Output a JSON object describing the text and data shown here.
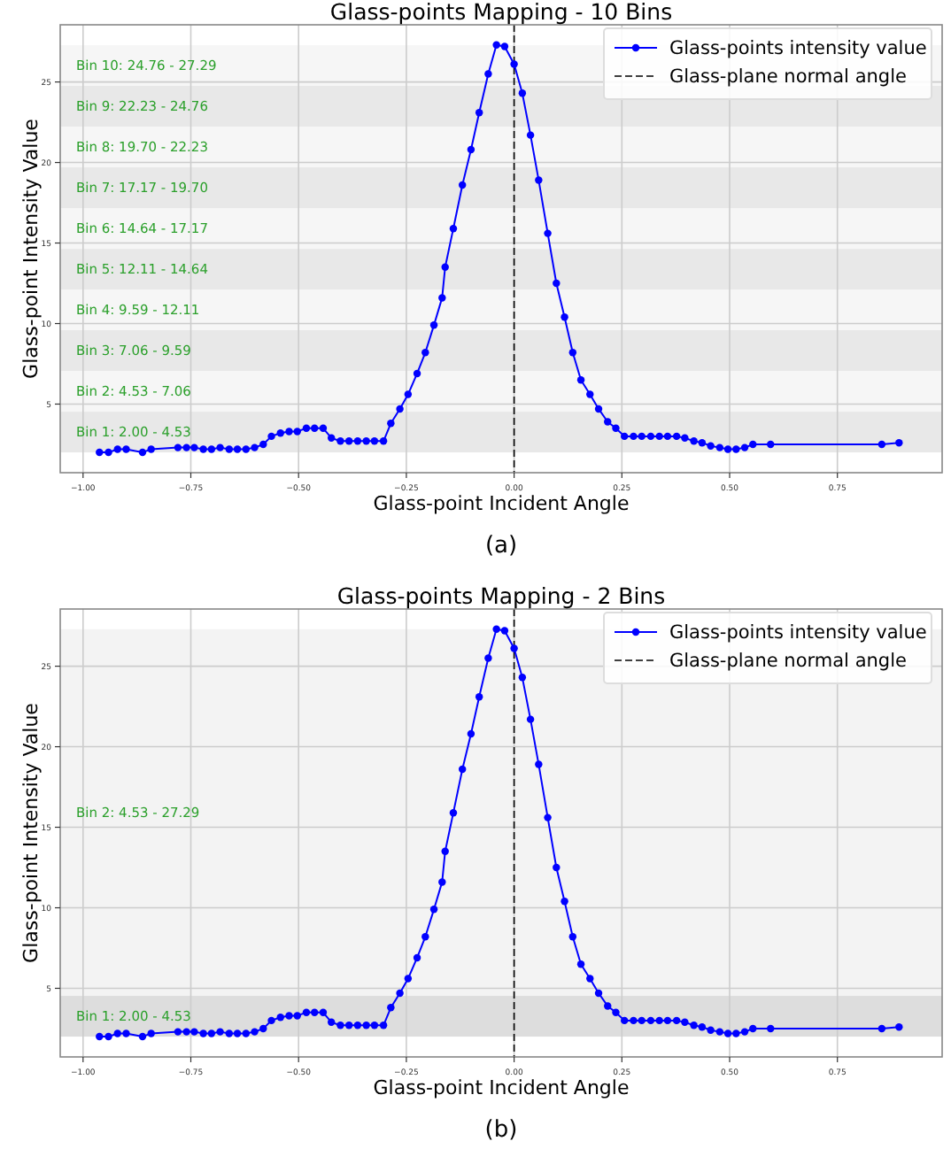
{
  "chart_data": [
    {
      "type": "line",
      "title": "Glass-points Mapping - 10 Bins",
      "xlabel": "Glass-point Incident Angle",
      "ylabel": "Glass-point Intensity Value",
      "annotations": [
        "(a)"
      ],
      "x": [
        -0.962,
        -0.941,
        -0.92,
        -0.9,
        -0.862,
        -0.842,
        -0.78,
        -0.76,
        -0.742,
        -0.721,
        -0.702,
        -0.682,
        -0.661,
        -0.642,
        -0.622,
        -0.602,
        -0.582,
        -0.563,
        -0.542,
        -0.522,
        -0.503,
        -0.482,
        -0.463,
        -0.443,
        -0.424,
        -0.403,
        -0.383,
        -0.363,
        -0.343,
        -0.324,
        -0.303,
        -0.286,
        -0.265,
        -0.246,
        -0.225,
        -0.206,
        -0.186,
        -0.167,
        -0.16,
        -0.141,
        -0.12,
        -0.1,
        -0.081,
        -0.06,
        -0.041,
        -0.022,
        0.0,
        0.019,
        0.038,
        0.057,
        0.078,
        0.098,
        0.117,
        0.136,
        0.155,
        0.176,
        0.196,
        0.217,
        0.236,
        0.256,
        0.277,
        0.296,
        0.317,
        0.337,
        0.356,
        0.377,
        0.396,
        0.417,
        0.436,
        0.456,
        0.477,
        0.496,
        0.515,
        0.535,
        0.554,
        0.595,
        0.853,
        0.893
      ],
      "series": [
        {
          "name": "Glass-points intensity value",
          "color": "#0000ff",
          "values": [
            2.0,
            2.0,
            2.2,
            2.2,
            2.0,
            2.2,
            2.3,
            2.3,
            2.3,
            2.2,
            2.2,
            2.3,
            2.2,
            2.2,
            2.2,
            2.3,
            2.5,
            3.0,
            3.2,
            3.3,
            3.3,
            3.5,
            3.5,
            3.5,
            2.9,
            2.7,
            2.7,
            2.7,
            2.7,
            2.7,
            2.7,
            3.8,
            4.7,
            5.6,
            6.9,
            8.2,
            9.9,
            11.6,
            13.5,
            15.9,
            18.6,
            20.8,
            23.1,
            25.5,
            27.3,
            27.2,
            26.1,
            24.3,
            21.7,
            18.9,
            15.6,
            12.5,
            10.4,
            8.2,
            6.5,
            5.6,
            4.7,
            3.9,
            3.5,
            3.0,
            3.0,
            3.0,
            3.0,
            3.0,
            3.0,
            3.0,
            2.9,
            2.7,
            2.6,
            2.4,
            2.3,
            2.2,
            2.2,
            2.3,
            2.5,
            2.5,
            2.5,
            2.6
          ]
        }
      ],
      "xlim": [
        -1.053,
        0.993
      ],
      "ylim": [
        0.74,
        28.55
      ],
      "xticks": [
        {
          "value": -1,
          "label": "−1.00"
        },
        {
          "value": -0.75,
          "label": "−0.75"
        },
        {
          "value": -0.5,
          "label": "−0.50"
        },
        {
          "value": -0.25,
          "label": "−0.25"
        },
        {
          "value": 0,
          "label": "0.00"
        },
        {
          "value": 0.25,
          "label": "0.25"
        },
        {
          "value": 0.5,
          "label": "0.50"
        },
        {
          "value": 0.75,
          "label": "0.75"
        }
      ],
      "yticks": [
        5,
        10,
        15,
        20,
        25
      ],
      "grid": true,
      "marker": "circle",
      "line_style": "solid",
      "legend": "top right",
      "ref_lines": [
        {
          "axis": "x",
          "value": 0,
          "label": "Glass-plane normal angle",
          "color": "#000000",
          "line_style": "dashed"
        }
      ],
      "bands": [
        {
          "axis": "y",
          "from": 2.0,
          "to": 4.53,
          "label": "Bin 1: 2.00 - 4.53",
          "color": "#e8e8e8"
        },
        {
          "axis": "y",
          "from": 4.53,
          "to": 7.06,
          "label": "Bin 2: 4.53 - 7.06",
          "color": "#f6f6f6"
        },
        {
          "axis": "y",
          "from": 7.06,
          "to": 9.59,
          "label": "Bin 3: 7.06 - 9.59",
          "color": "#e8e8e8"
        },
        {
          "axis": "y",
          "from": 9.59,
          "to": 12.11,
          "label": "Bin 4: 9.59 - 12.11",
          "color": "#f6f6f6"
        },
        {
          "axis": "y",
          "from": 12.11,
          "to": 14.64,
          "label": "Bin 5: 12.11 - 14.64",
          "color": "#e8e8e8"
        },
        {
          "axis": "y",
          "from": 14.64,
          "to": 17.17,
          "label": "Bin 6: 14.64 - 17.17",
          "color": "#f6f6f6"
        },
        {
          "axis": "y",
          "from": 17.17,
          "to": 19.7,
          "label": "Bin 7: 17.17 - 19.70",
          "color": "#e8e8e8"
        },
        {
          "axis": "y",
          "from": 19.7,
          "to": 22.23,
          "label": "Bin 8: 19.70 - 22.23",
          "color": "#f6f6f6"
        },
        {
          "axis": "y",
          "from": 22.23,
          "to": 24.76,
          "label": "Bin 9: 22.23 - 24.76",
          "color": "#e8e8e8"
        },
        {
          "axis": "y",
          "from": 24.76,
          "to": 27.29,
          "label": "Bin 10: 24.76 - 27.29",
          "color": "#f6f6f6"
        }
      ]
    },
    {
      "type": "line",
      "title": "Glass-points Mapping - 2 Bins",
      "xlabel": "Glass-point Incident Angle",
      "ylabel": "Glass-point Intensity Value",
      "annotations": [
        "(b)"
      ],
      "x": [
        -0.962,
        -0.941,
        -0.92,
        -0.9,
        -0.862,
        -0.842,
        -0.78,
        -0.76,
        -0.742,
        -0.721,
        -0.702,
        -0.682,
        -0.661,
        -0.642,
        -0.622,
        -0.602,
        -0.582,
        -0.563,
        -0.542,
        -0.522,
        -0.503,
        -0.482,
        -0.463,
        -0.443,
        -0.424,
        -0.403,
        -0.383,
        -0.363,
        -0.343,
        -0.324,
        -0.303,
        -0.286,
        -0.265,
        -0.246,
        -0.225,
        -0.206,
        -0.186,
        -0.167,
        -0.16,
        -0.141,
        -0.12,
        -0.1,
        -0.081,
        -0.06,
        -0.041,
        -0.022,
        0.0,
        0.019,
        0.038,
        0.057,
        0.078,
        0.098,
        0.117,
        0.136,
        0.155,
        0.176,
        0.196,
        0.217,
        0.236,
        0.256,
        0.277,
        0.296,
        0.317,
        0.337,
        0.356,
        0.377,
        0.396,
        0.417,
        0.436,
        0.456,
        0.477,
        0.496,
        0.515,
        0.535,
        0.554,
        0.595,
        0.853,
        0.893
      ],
      "series": [
        {
          "name": "Glass-points intensity value",
          "color": "#0000ff",
          "values": [
            2.0,
            2.0,
            2.2,
            2.2,
            2.0,
            2.2,
            2.3,
            2.3,
            2.3,
            2.2,
            2.2,
            2.3,
            2.2,
            2.2,
            2.2,
            2.3,
            2.5,
            3.0,
            3.2,
            3.3,
            3.3,
            3.5,
            3.5,
            3.5,
            2.9,
            2.7,
            2.7,
            2.7,
            2.7,
            2.7,
            2.7,
            3.8,
            4.7,
            5.6,
            6.9,
            8.2,
            9.9,
            11.6,
            13.5,
            15.9,
            18.6,
            20.8,
            23.1,
            25.5,
            27.3,
            27.2,
            26.1,
            24.3,
            21.7,
            18.9,
            15.6,
            12.5,
            10.4,
            8.2,
            6.5,
            5.6,
            4.7,
            3.9,
            3.5,
            3.0,
            3.0,
            3.0,
            3.0,
            3.0,
            3.0,
            3.0,
            2.9,
            2.7,
            2.6,
            2.4,
            2.3,
            2.2,
            2.2,
            2.3,
            2.5,
            2.5,
            2.5,
            2.6
          ]
        }
      ],
      "xlim": [
        -1.053,
        0.993
      ],
      "ylim": [
        0.74,
        28.55
      ],
      "xticks": [
        {
          "value": -1,
          "label": "−1.00"
        },
        {
          "value": -0.75,
          "label": "−0.75"
        },
        {
          "value": -0.5,
          "label": "−0.50"
        },
        {
          "value": -0.25,
          "label": "−0.25"
        },
        {
          "value": 0,
          "label": "0.00"
        },
        {
          "value": 0.25,
          "label": "0.25"
        },
        {
          "value": 0.5,
          "label": "0.50"
        },
        {
          "value": 0.75,
          "label": "0.75"
        }
      ],
      "yticks": [
        5,
        10,
        15,
        20,
        25
      ],
      "grid": true,
      "marker": "circle",
      "line_style": "solid",
      "legend": "top right",
      "ref_lines": [
        {
          "axis": "x",
          "value": 0,
          "label": "Glass-plane normal angle",
          "color": "#000000",
          "line_style": "dashed"
        }
      ],
      "bands": [
        {
          "axis": "y",
          "from": 2.0,
          "to": 4.53,
          "label": "Bin 1: 2.00 - 4.53",
          "color": "#dddddd"
        },
        {
          "axis": "y",
          "from": 4.53,
          "to": 27.29,
          "label": "Bin 2: 4.53 - 27.29",
          "color": "#f3f3f3"
        }
      ]
    }
  ]
}
